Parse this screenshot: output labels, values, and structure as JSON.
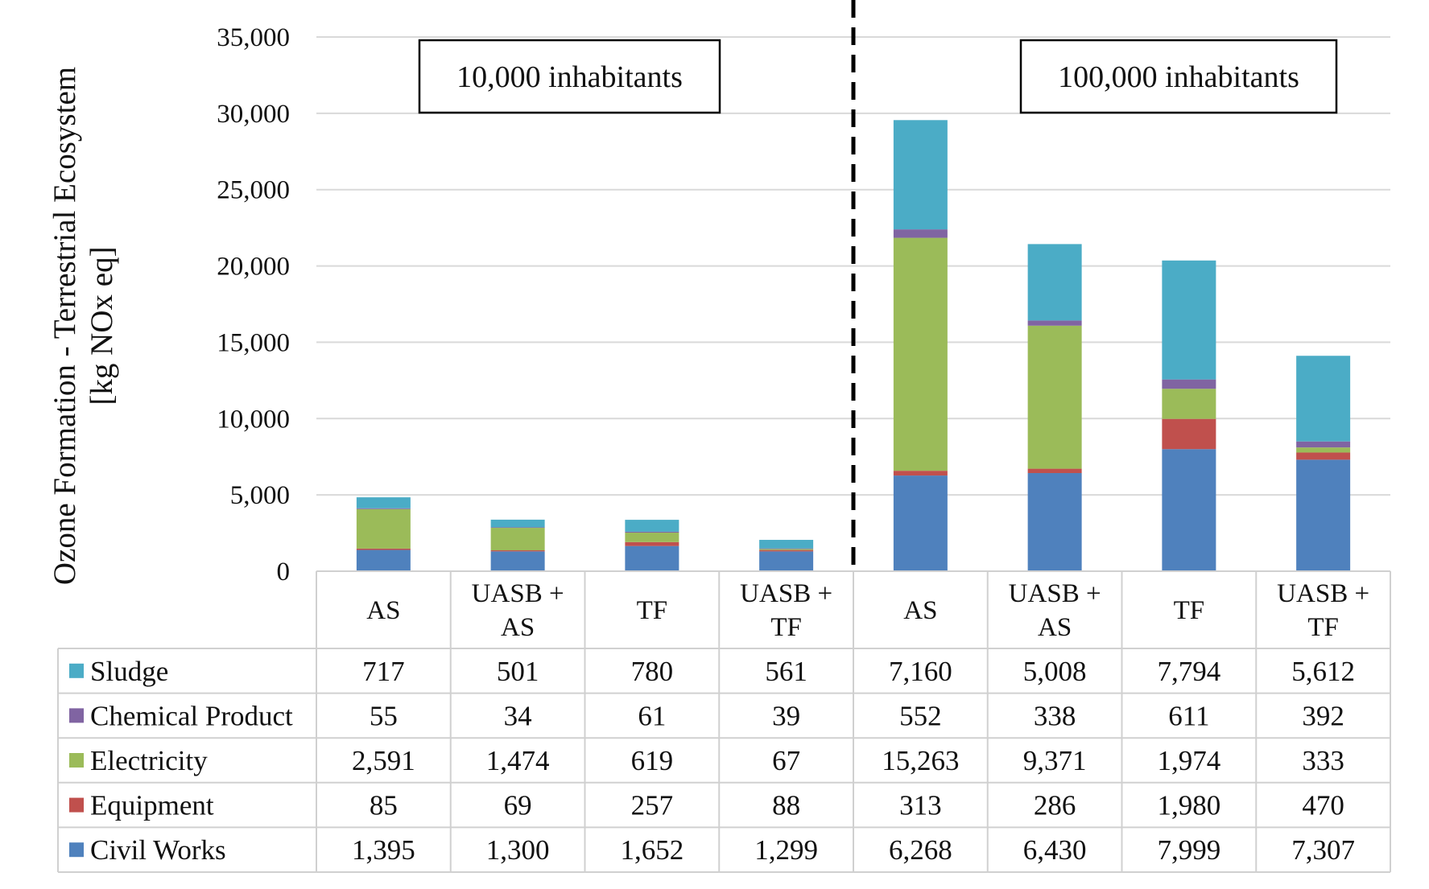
{
  "chart_data": {
    "type": "bar",
    "stacked": true,
    "ylabel_lines": [
      "Ozone Formation - Terrestrial Ecosystem",
      "[kg NOx eq]"
    ],
    "ylim": [
      0,
      35000
    ],
    "yticks": [
      0,
      5000,
      10000,
      15000,
      20000,
      25000,
      30000,
      35000
    ],
    "ytick_labels": [
      "0",
      "5,000",
      "10,000",
      "15,000",
      "20,000",
      "25,000",
      "30,000",
      "35,000"
    ],
    "grid": true,
    "legend": "data-table-left",
    "categories": [
      [
        "AS"
      ],
      [
        "UASB +",
        "AS"
      ],
      [
        "TF"
      ],
      [
        "UASB +",
        "TF"
      ],
      [
        "AS"
      ],
      [
        "UASB +",
        "AS"
      ],
      [
        "TF"
      ],
      [
        "UASB +",
        "TF"
      ]
    ],
    "groups": [
      {
        "label": "10,000 inhabitants",
        "categories": [
          0,
          1,
          2,
          3
        ]
      },
      {
        "label": "100,000 inhabitants",
        "categories": [
          4,
          5,
          6,
          7
        ]
      }
    ],
    "series": [
      {
        "name": "Civil Works",
        "color": "#4F81BD",
        "values": [
          1395,
          1300,
          1652,
          1299,
          6268,
          6430,
          7999,
          7307
        ],
        "labels": [
          "1,395",
          "1,300",
          "1,652",
          "1,299",
          "6,268",
          "6,430",
          "7,999",
          "7,307"
        ]
      },
      {
        "name": "Equipment",
        "color": "#C0504D",
        "values": [
          85,
          69,
          257,
          88,
          313,
          286,
          1980,
          470
        ],
        "labels": [
          "85",
          "69",
          "257",
          "88",
          "313",
          "286",
          "1,980",
          "470"
        ]
      },
      {
        "name": "Electricity",
        "color": "#9BBB59",
        "values": [
          2591,
          1474,
          619,
          67,
          15263,
          9371,
          1974,
          333
        ],
        "labels": [
          "2,591",
          "1,474",
          "619",
          "67",
          "15,263",
          "9,371",
          "1,974",
          "333"
        ]
      },
      {
        "name": "Chemical Product",
        "color": "#8064A2",
        "values": [
          55,
          34,
          61,
          39,
          552,
          338,
          611,
          392
        ],
        "labels": [
          "55",
          "34",
          "61",
          "39",
          "552",
          "338",
          "611",
          "392"
        ]
      },
      {
        "name": "Sludge",
        "color": "#4BACC6",
        "values": [
          717,
          501,
          780,
          561,
          7160,
          5008,
          7794,
          5612
        ],
        "labels": [
          "717",
          "501",
          "780",
          "561",
          "7,160",
          "5,008",
          "7,794",
          "5,612"
        ]
      }
    ],
    "table_row_order": [
      "Sludge",
      "Chemical Product",
      "Electricity",
      "Equipment",
      "Civil Works"
    ],
    "separator": "dashed line between the two groups"
  }
}
